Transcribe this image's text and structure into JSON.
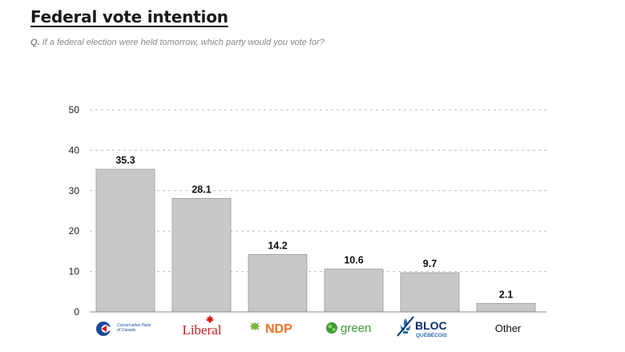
{
  "title": "Federal vote intention",
  "question": {
    "label": "Q.",
    "text": "If a federal election were held tomorrow, which party would you vote for?"
  },
  "chart_data": {
    "type": "bar",
    "categories": [
      "Conservative Party of Canada",
      "Liberal",
      "NDP",
      "green",
      "BLOC QUÉBÉCOIS",
      "Other"
    ],
    "values": [
      35.3,
      28.1,
      14.2,
      10.6,
      9.7,
      2.1
    ],
    "data_labels": [
      "35.3",
      "28.1",
      "14.2",
      "10.6",
      "9.7",
      "2.1"
    ],
    "yticks": [
      0,
      10,
      20,
      30,
      40,
      50
    ],
    "ylim": [
      0,
      50
    ],
    "grid": true,
    "bar_color": "#c8c8c8",
    "xlabel": "",
    "ylabel": ""
  },
  "logos": {
    "conservative": {
      "line1": "Conservative Party",
      "line2": "of Canada",
      "color": "#1a4a9c"
    },
    "liberal": {
      "text": "Liberal",
      "color": "#d71920"
    },
    "ndp": {
      "text": "NDP",
      "color": "#f37021"
    },
    "green": {
      "text": "green",
      "color": "#3d9b35"
    },
    "bloc": {
      "line1": "BLOC",
      "line2": "QUÉBÉCOIS",
      "color": "#2b6cb0",
      "accent": "#0a2e6e"
    },
    "other": {
      "text": "Other"
    }
  }
}
